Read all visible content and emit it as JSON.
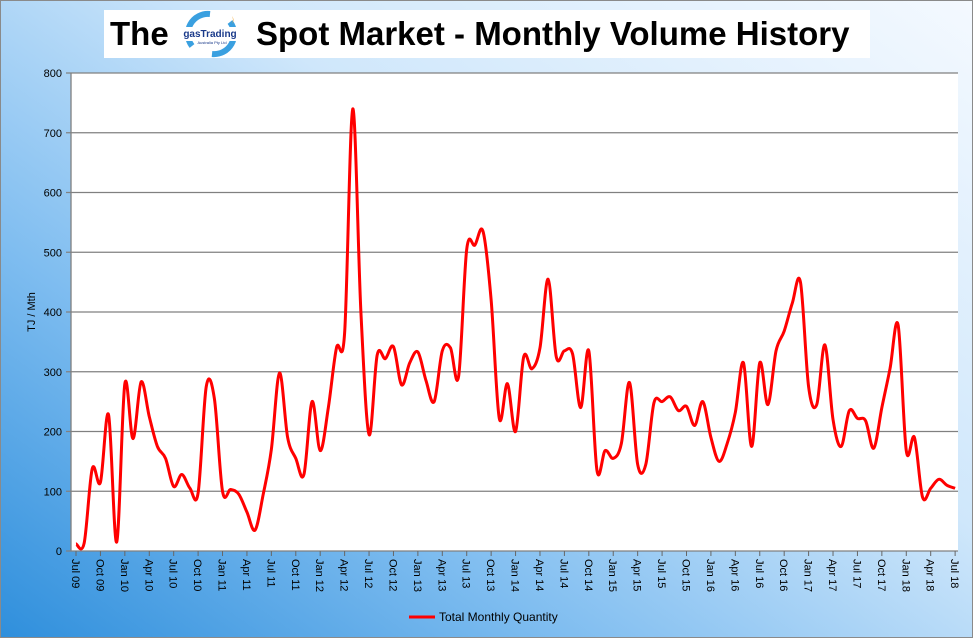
{
  "title": {
    "prefix": "The",
    "suffix": "Spot Market - Monthly Volume History",
    "logo_text": "gasTrading",
    "logo_subtext": "Australia Pty Ltd"
  },
  "colors": {
    "line": "#ff0000",
    "grid": "#808080"
  },
  "chart_data": {
    "type": "line",
    "title": "The gasTrading Spot Market - Monthly Volume History",
    "xlabel": "",
    "ylabel": "TJ / Mth",
    "ylim": [
      0,
      800
    ],
    "yticks": [
      0,
      100,
      200,
      300,
      400,
      500,
      600,
      700,
      800
    ],
    "grid": true,
    "legend": "bottom",
    "xstart": "Jul 09",
    "xend": "Jul 18",
    "xtick_labels": [
      "Jul 09",
      "Oct 09",
      "Jan 10",
      "Apr 10",
      "Jul 10",
      "Oct 10",
      "Jan 11",
      "Apr 11",
      "Jul 11",
      "Oct 11",
      "Jan 12",
      "Apr 12",
      "Jul 12",
      "Oct 12",
      "Jan 13",
      "Apr 13",
      "Jul 13",
      "Oct 13",
      "Jan 14",
      "Apr 14",
      "Jul 14",
      "Oct 14",
      "Jan 15",
      "Apr 15",
      "Jul 15",
      "Oct 15",
      "Jan 16",
      "Apr 16",
      "Jul 16",
      "Oct 16",
      "Jan 17",
      "Apr 17",
      "Jul 17",
      "Oct 17",
      "Jan 18",
      "Apr 18",
      "Jul 18"
    ],
    "series": [
      {
        "name": "Total Monthly Quantity",
        "values": [
          12,
          13,
          138,
          115,
          228,
          15,
          280,
          188,
          283,
          225,
          175,
          155,
          108,
          128,
          105,
          97,
          275,
          255,
          100,
          103,
          95,
          65,
          35,
          95,
          170,
          298,
          190,
          155,
          128,
          250,
          168,
          240,
          340,
          365,
          740,
          400,
          195,
          328,
          322,
          342,
          278,
          315,
          333,
          285,
          250,
          335,
          340,
          292,
          505,
          512,
          535,
          420,
          222,
          280,
          200,
          325,
          305,
          340,
          455,
          325,
          335,
          330,
          240,
          335,
          135,
          168,
          155,
          180,
          282,
          145,
          145,
          248,
          250,
          258,
          235,
          242,
          210,
          250,
          190,
          150,
          180,
          232,
          315,
          175,
          315,
          245,
          335,
          368,
          415,
          450,
          275,
          245,
          345,
          220,
          175,
          235,
          222,
          218,
          172,
          240,
          305,
          378,
          168,
          190,
          90,
          105,
          120,
          110,
          105
        ]
      }
    ]
  }
}
